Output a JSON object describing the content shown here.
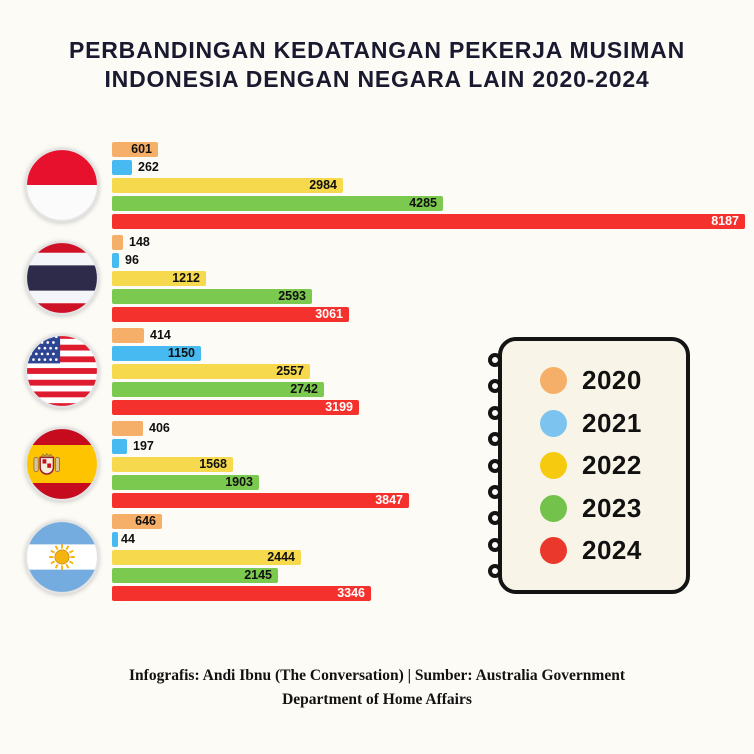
{
  "title": {
    "line1": "PERBANDINGAN KEDATANGAN PEKERJA MUSIMAN",
    "line2": "INDONESIA DENGAN NEGARA LAIN 2020-2024"
  },
  "chart_data": {
    "type": "bar",
    "orientation": "horizontal",
    "title": "Perbandingan Kedatangan Pekerja Musiman Indonesia dengan Negara Lain 2020-2024",
    "xlim": [
      0,
      8187
    ],
    "grid": false,
    "legend_position": "right",
    "categories": [
      {
        "label": "Indonesia",
        "flag": "indonesia-flag"
      },
      {
        "label": "Thailand",
        "flag": "thailand-flag"
      },
      {
        "label": "United States",
        "flag": "usa-flag"
      },
      {
        "label": "Spain",
        "flag": "spain-flag"
      },
      {
        "label": "Argentina",
        "flag": "argentina-flag"
      }
    ],
    "series": [
      {
        "name": "2020",
        "color": "#F6AF68",
        "label_color": "#101010",
        "values": [
          601,
          148,
          414,
          406,
          646
        ]
      },
      {
        "name": "2021",
        "color": "#47BAF2",
        "label_color": "#101010",
        "values": [
          262,
          96,
          1150,
          197,
          44
        ]
      },
      {
        "name": "2022",
        "color": "#F6D94C",
        "label_color": "#101010",
        "values": [
          2984,
          1212,
          2557,
          1568,
          2444
        ]
      },
      {
        "name": "2023",
        "color": "#7CC94F",
        "label_color": "#101010",
        "values": [
          4285,
          2593,
          2742,
          1903,
          2145
        ]
      },
      {
        "name": "2024",
        "color": "#F5312D",
        "label_color": "#FFFFFF",
        "values": [
          8187,
          3061,
          3199,
          3847,
          3346
        ]
      }
    ]
  },
  "legend": {
    "items": [
      {
        "label": "2020",
        "color": "#F6AF68"
      },
      {
        "label": "2021",
        "color": "#7CC4EF"
      },
      {
        "label": "2022",
        "color": "#F6CB0F"
      },
      {
        "label": "2023",
        "color": "#72C24C"
      },
      {
        "label": "2024",
        "color": "#EA392C"
      }
    ]
  },
  "footer": {
    "line1": "Infografis: Andi Ibnu (The Conversation) | Sumber: Australia Government",
    "line2": "Department of Home Affairs"
  }
}
